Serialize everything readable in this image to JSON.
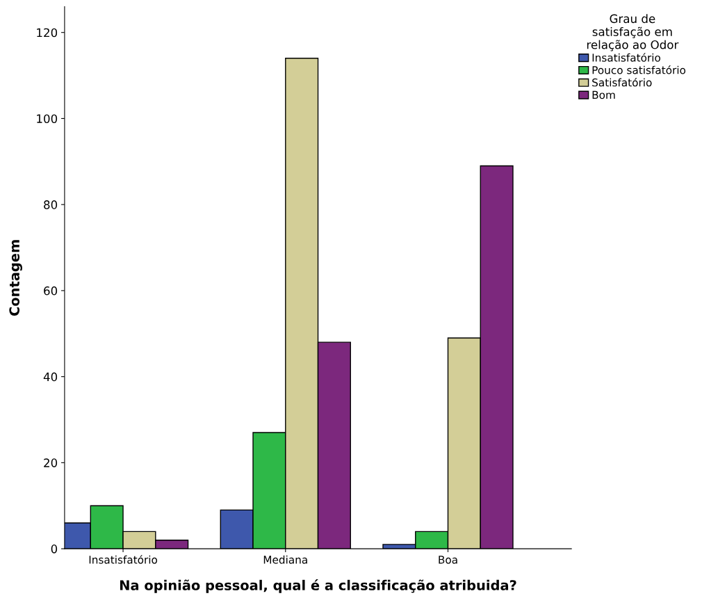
{
  "chart_data": {
    "type": "bar",
    "xlabel": "Na opinião pessoal, qual é a classificação atribuida?",
    "ylabel": "Contagem",
    "legend_title": "Grau de\nsatisfação em\nrelação ao Odor",
    "categories": [
      "Insatisfatório",
      "Mediana",
      "Boa"
    ],
    "series": [
      {
        "name": "Insatisfatório",
        "color": "#3e58ac",
        "values": [
          6,
          9,
          1
        ]
      },
      {
        "name": "Pouco satisfatório",
        "color": "#2eb848",
        "values": [
          10,
          27,
          4
        ]
      },
      {
        "name": "Satisfatório",
        "color": "#d3ce97",
        "values": [
          4,
          114,
          49
        ]
      },
      {
        "name": "Bom",
        "color": "#7c287d",
        "values": [
          2,
          48,
          89
        ]
      }
    ],
    "ylim": [
      0,
      126
    ],
    "yticks": [
      0,
      20,
      40,
      60,
      80,
      100,
      120
    ],
    "grid": false,
    "legend": "top right"
  }
}
